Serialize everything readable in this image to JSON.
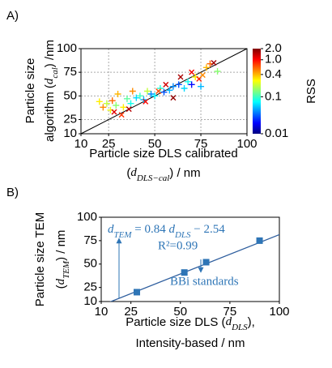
{
  "chart_data": [
    {
      "type": "scatter",
      "panel_label": "A)",
      "ylabel": [
        [
          {
            "t": "Particle size"
          }
        ],
        [
          {
            "t": "algorithm ("
          },
          {
            "t": "d",
            "style": "italic"
          },
          {
            "t": "cal",
            "style": "sub"
          },
          {
            "t": ") /nm"
          }
        ]
      ],
      "xlabel": [
        [
          {
            "t": "Particle size DLS calibrated"
          }
        ],
        [
          {
            "t": "("
          },
          {
            "t": "d",
            "style": "italic"
          },
          {
            "t": "DLS−cal",
            "style": "sub"
          },
          {
            "t": ") / nm"
          }
        ]
      ],
      "xlim": [
        10,
        100
      ],
      "ylim": [
        10,
        100
      ],
      "xticks": [
        10,
        25,
        50,
        75,
        100
      ],
      "yticks": [
        10,
        25,
        50,
        75,
        100
      ],
      "grid": true,
      "identity_line": true,
      "colorbar": {
        "label": "RSS",
        "scale": "log",
        "lim": [
          0.01,
          2.0
        ],
        "colormap": "jet",
        "ticks": [
          {
            "value": 0.01,
            "label": "0.01"
          },
          0.1,
          0.4,
          {
            "value": 1.0,
            "label": "1.0"
          },
          {
            "value": 2.0,
            "label": "2.0"
          }
        ]
      },
      "series": [
        {
          "marker": "+",
          "x": [
            20,
            22,
            24,
            26,
            27,
            29,
            30,
            33,
            35,
            37,
            38,
            40,
            42,
            44,
            46,
            48,
            50,
            53,
            55,
            58,
            60,
            63,
            66,
            68,
            70,
            72,
            75,
            78,
            80,
            84
          ],
          "y": [
            44,
            38,
            42,
            35,
            45,
            40,
            52,
            38,
            47,
            42,
            55,
            48,
            50,
            46,
            55,
            52,
            50,
            58,
            54,
            56,
            60,
            62,
            58,
            65,
            62,
            70,
            60,
            80,
            84,
            76
          ],
          "rss": [
            0.3,
            0.5,
            0.2,
            0.25,
            0.6,
            0.15,
            0.4,
            0.3,
            0.12,
            0.08,
            0.5,
            0.06,
            0.1,
            0.05,
            0.2,
            0.04,
            0.07,
            0.09,
            0.03,
            0.05,
            0.04,
            0.03,
            0.06,
            0.08,
            0.02,
            0.3,
            0.05,
            0.4,
            0.6,
            0.15
          ]
        },
        {
          "marker": "x",
          "x": [
            28,
            32,
            36,
            45,
            52,
            56,
            60,
            64,
            70,
            74,
            82,
            76
          ],
          "y": [
            33,
            30,
            36,
            44,
            55,
            62,
            48,
            70,
            75,
            68,
            85,
            72
          ],
          "rss": [
            1.2,
            0.8,
            1.5,
            1.0,
            0.7,
            1.3,
            1.8,
            1.6,
            1.1,
            0.9,
            1.7,
            0.5
          ]
        }
      ]
    },
    {
      "type": "scatter",
      "panel_label": "B)",
      "color": "#2e75b6",
      "ylabel": [
        [
          {
            "t": "Particle size TEM"
          }
        ],
        [
          {
            "t": "("
          },
          {
            "t": "d",
            "style": "italic"
          },
          {
            "t": "TEM",
            "style": "sub"
          },
          {
            "t": ") / nm"
          }
        ]
      ],
      "xlabel": [
        [
          {
            "t": "Particle size DLS ("
          },
          {
            "t": "d",
            "style": "italic"
          },
          {
            "t": "DLS",
            "style": "sub"
          },
          {
            "t": "),"
          }
        ],
        [
          {
            "t": "Intensity-based / nm"
          }
        ]
      ],
      "xlim": [
        10,
        100
      ],
      "ylim": [
        10,
        100
      ],
      "xticks": [
        10,
        25,
        50,
        75,
        100
      ],
      "yticks": [
        10,
        25,
        50,
        75,
        100
      ],
      "grid": false,
      "series": [
        {
          "marker": "square",
          "x": [
            28,
            52,
            63,
            90
          ],
          "y": [
            20,
            41,
            52,
            75
          ]
        }
      ],
      "fit": {
        "slope": 0.84,
        "intercept": -2.54
      },
      "annotations": {
        "equation": [
          {
            "t": "d",
            "style": "italic"
          },
          {
            "t": "TEM",
            "style": "sub"
          },
          {
            "t": " = 0.84 "
          },
          {
            "t": "d",
            "style": "italic"
          },
          {
            "t": "DLS",
            "style": "sub"
          },
          {
            "t": " − 2.54"
          }
        ],
        "r2": "R²=0.99",
        "standards": "BBi standards"
      }
    }
  ]
}
